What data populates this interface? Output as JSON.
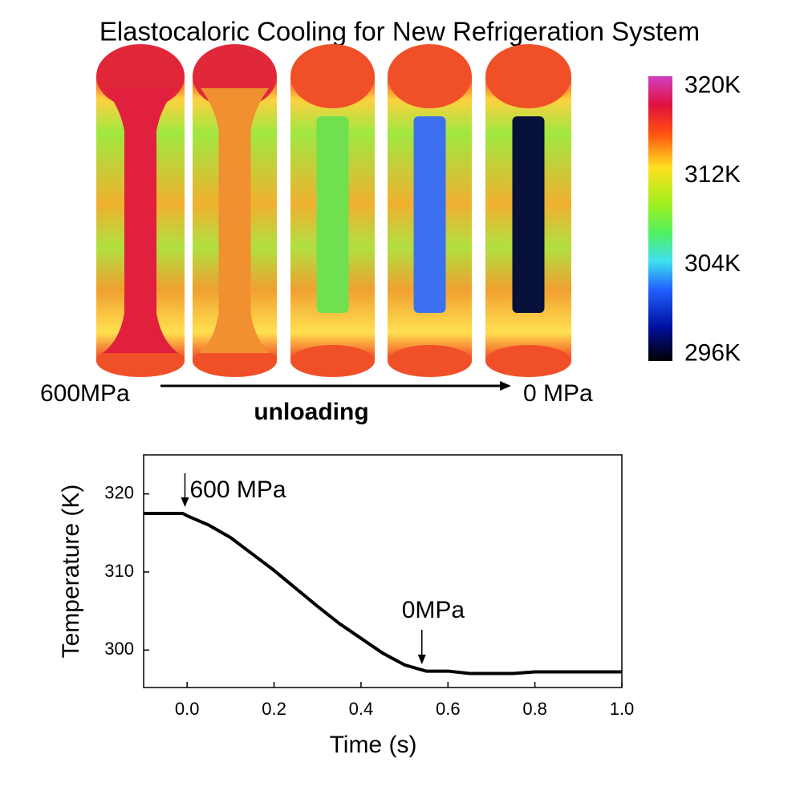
{
  "title": "Elastocaloric Cooling for New Refrigeration System",
  "images": {
    "start_label": "600MPa",
    "end_label": "0 MPa",
    "arrow_label": "unloading"
  },
  "colorbar": {
    "lim": [
      295.4,
      320.9
    ],
    "ticks": [
      {
        "value": 320,
        "label": "320K"
      },
      {
        "value": 312,
        "label": "312K"
      },
      {
        "value": 304,
        "label": "304K"
      },
      {
        "value": 296,
        "label": "296K"
      }
    ]
  },
  "chart_data": {
    "type": "line",
    "x_label": "Time (s)",
    "y_label": "Temperature (K)",
    "x": [
      -0.1,
      -0.01,
      0.0,
      0.05,
      0.1,
      0.15,
      0.2,
      0.25,
      0.3,
      0.35,
      0.4,
      0.45,
      0.5,
      0.55,
      0.6,
      0.65,
      0.7,
      0.75,
      0.8,
      0.9,
      1.0
    ],
    "values": [
      317.5,
      317.5,
      317.2,
      316.0,
      314.4,
      312.3,
      310.2,
      307.9,
      305.6,
      303.4,
      301.5,
      299.6,
      298.1,
      297.3,
      297.3,
      297.0,
      297.0,
      297.0,
      297.2,
      297.2,
      297.2
    ],
    "color": "#000000",
    "xlim": [
      -0.1,
      1.0
    ],
    "ylim": [
      295.2,
      325
    ],
    "xticks": [
      {
        "value": 0,
        "label": "0.0"
      },
      0.2,
      0.4,
      0.6,
      0.8,
      {
        "value": 1,
        "label": "1.0"
      }
    ],
    "yticks": [
      300,
      310,
      320
    ],
    "annotations": [
      {
        "text": "600 MPa",
        "x": -0.005
      },
      {
        "text": "0MPa",
        "x": 0.54
      }
    ]
  }
}
